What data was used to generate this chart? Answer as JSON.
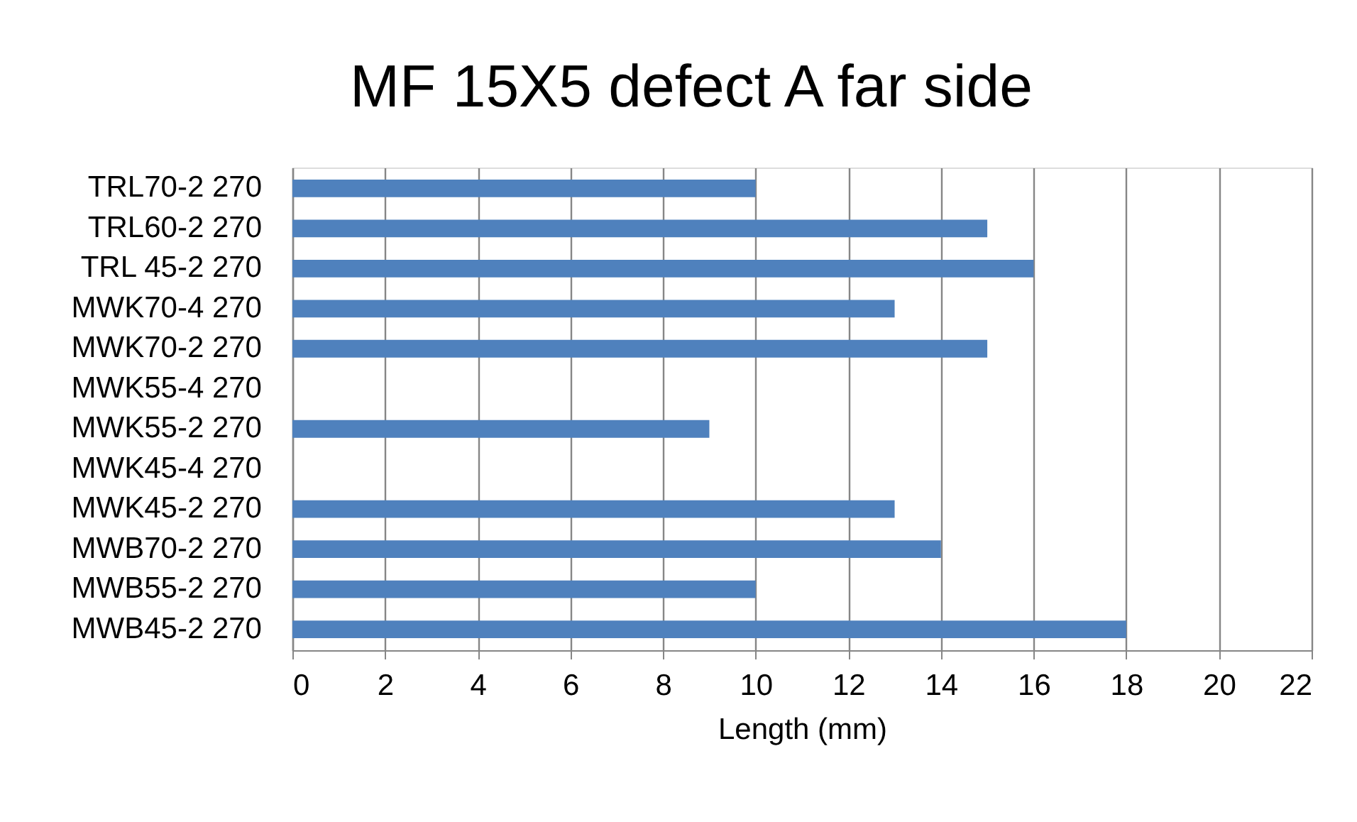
{
  "chart_data": {
    "type": "bar",
    "orientation": "horizontal",
    "title": "MF 15X5 defect A far side",
    "xlabel": "Length (mm)",
    "categories": [
      "TRL70-2 270",
      "TRL60-2 270",
      "TRL 45-2 270",
      "MWK70-4 270",
      "MWK70-2 270",
      "MWK55-4 270",
      "MWK55-2 270",
      "MWK45-4 270",
      "MWK45-2 270",
      "MWB70-2 270",
      "MWB55-2 270",
      "MWB45-2 270"
    ],
    "values": [
      10,
      15,
      16,
      13,
      15,
      null,
      9,
      null,
      13,
      14,
      10,
      18
    ],
    "color": "#4f81bd",
    "xlim": [
      0,
      22
    ],
    "xticks": [
      0,
      2,
      4,
      6,
      8,
      10,
      12,
      14,
      16,
      18,
      20,
      22
    ],
    "grid": "x"
  }
}
